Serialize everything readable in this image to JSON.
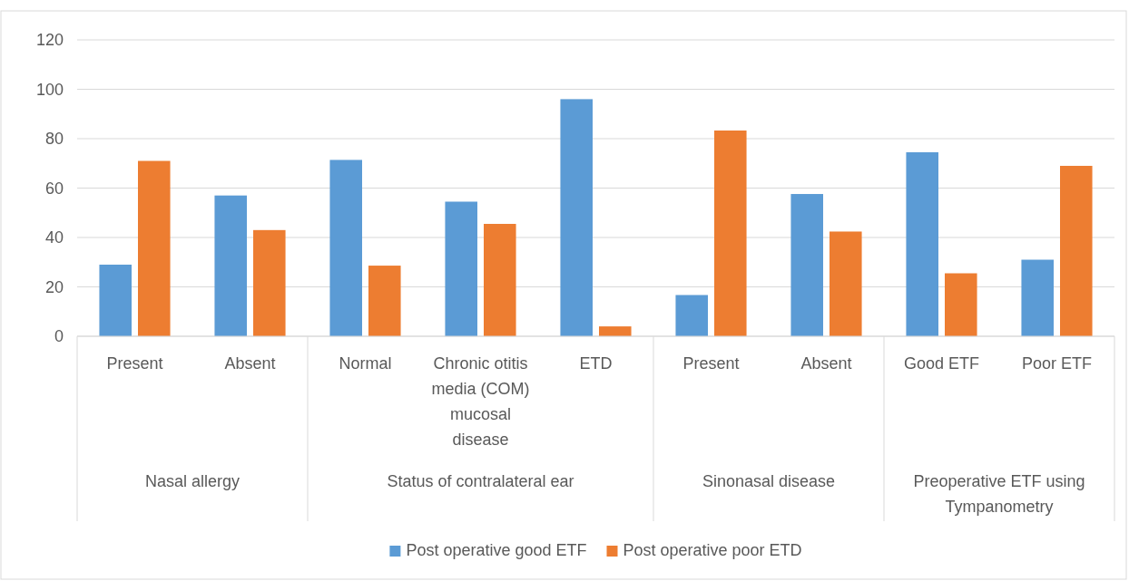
{
  "chart_data": {
    "type": "bar",
    "categories": [
      "Present",
      "Absent",
      "Normal",
      "Chronic otitis media (COM) mucosal disease",
      "ETD",
      "Present",
      "Absent",
      "Good ETF",
      "Poor ETF"
    ],
    "series": [
      {
        "name": "Post operative good ETF",
        "color": "#5b9bd5",
        "values": [
          29,
          57,
          71.4,
          54.5,
          96,
          16.7,
          57.6,
          74.5,
          31
        ]
      },
      {
        "name": "Post operative poor ETD",
        "color": "#ed7d31",
        "values": [
          71,
          43,
          28.6,
          45.5,
          4,
          83.3,
          42.4,
          25.5,
          69
        ]
      }
    ],
    "ylim": [
      0,
      120
    ],
    "yticks": [
      0,
      20,
      40,
      60,
      80,
      100,
      120
    ],
    "grid": "y",
    "legend": "bottom",
    "annotations": [
      "Nasal allergy",
      "Status of contralateral ear",
      "Sinonasal disease",
      "Preoperative ETF using Tympanometry"
    ]
  }
}
